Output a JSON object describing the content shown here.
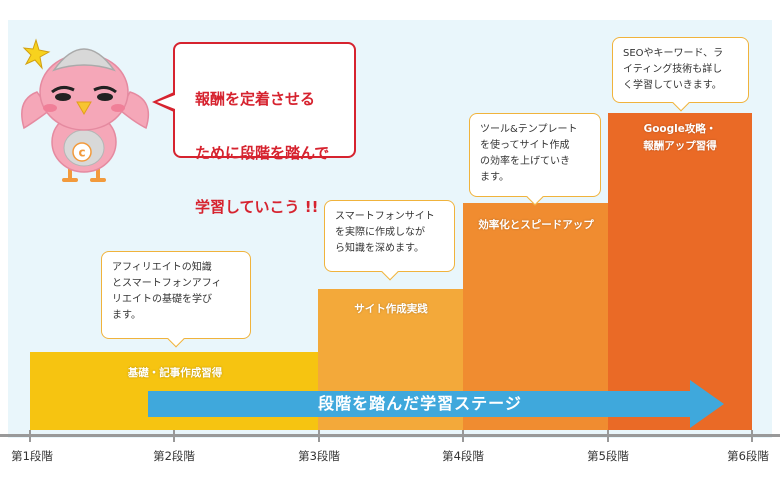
{
  "intro_bubble": {
    "lines": [
      "報酬を定着させる",
      "ために段階を踏んで",
      "学習していこう !!"
    ]
  },
  "steps": [
    {
      "label": "基礎・記事作成習得",
      "color": "#f6c411"
    },
    {
      "label": "サイト作成実践",
      "color": "#f3a93a"
    },
    {
      "label": "効率化とスピードアップ",
      "color": "#f08c30"
    },
    {
      "label": "Google攻略・\n報酬アップ習得",
      "color": "#ea6a26"
    }
  ],
  "bubbles": [
    {
      "text": "アフィリエイトの知識\nとスマートフォンアフィ\nリエイトの基礎を学び\nます。"
    },
    {
      "text": "スマートフォンサイト\nを実際に作成しなが\nら知識を深めます。"
    },
    {
      "text": "ツール&テンプレート\nを使ってサイト作成\nの効率を上げていき\nます。"
    },
    {
      "text": "SEOやキーワード、ラ\nイティング技術も詳し\nく学習していきます。"
    }
  ],
  "arrow": {
    "label": "段階を踏んだ学習ステージ",
    "color": "#3fa8dc"
  },
  "axis": {
    "ticks": [
      "第1段階",
      "第2段階",
      "第3段階",
      "第4段階",
      "第5段階",
      "第6段階"
    ]
  },
  "colors": {
    "background": "#e9f6fb",
    "accent_red": "#d6232f",
    "bubble_border": "#f0b33c",
    "mascot_body": "#f5a7b8"
  },
  "mascot": {
    "badge_letter": "c"
  }
}
